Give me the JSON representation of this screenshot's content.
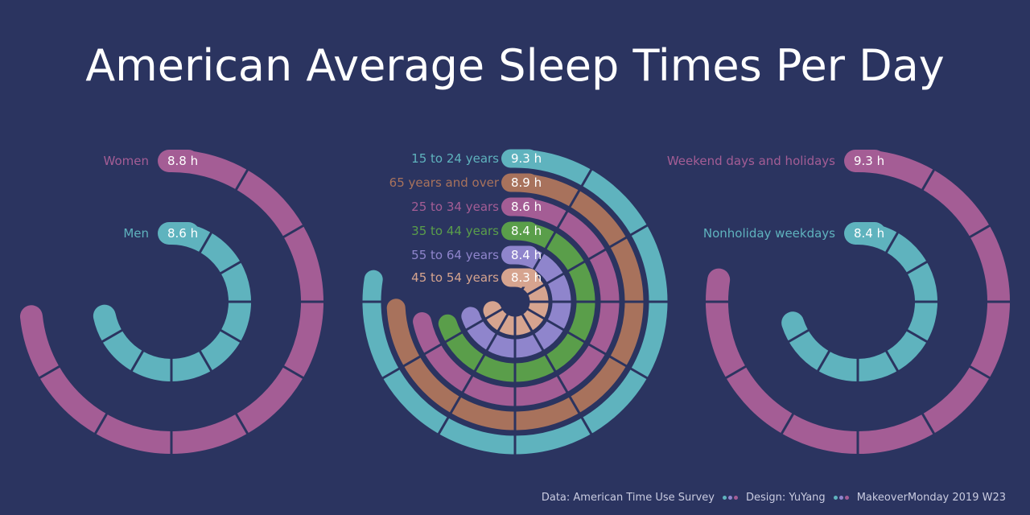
{
  "title": "American Average Sleep Times Per Day",
  "unit": "h",
  "colors": {
    "background": "#2b3460",
    "teal": "#5fb3be",
    "pink": "#a45d95",
    "brown": "#a8725c",
    "green": "#5a9e4a",
    "lavender": "#8f85cc",
    "peach": "#d6a48f"
  },
  "chart_data": [
    {
      "type": "radial-bar",
      "title": "",
      "series": [
        {
          "name": "Women",
          "value": 8.8,
          "value_label": "8.8 h",
          "color": "#a45d95"
        },
        {
          "name": "Men",
          "value": 8.6,
          "value_label": "8.6 h",
          "color": "#5fb3be"
        }
      ]
    },
    {
      "type": "radial-bar",
      "title": "",
      "series": [
        {
          "name": "15 to 24 years",
          "value": 9.3,
          "value_label": "9.3 h",
          "color": "#5fb3be"
        },
        {
          "name": "65 years and over",
          "value": 8.9,
          "value_label": "8.9 h",
          "color": "#a8725c"
        },
        {
          "name": "25 to 34 years",
          "value": 8.6,
          "value_label": "8.6 h",
          "color": "#a45d95"
        },
        {
          "name": "35 to 44 years",
          "value": 8.4,
          "value_label": "8.4 h",
          "color": "#5a9e4a"
        },
        {
          "name": "55 to 64 years",
          "value": 8.4,
          "value_label": "8.4 h",
          "color": "#8f85cc"
        },
        {
          "name": "45 to 54 years",
          "value": 8.3,
          "value_label": "8.3 h",
          "color": "#d6a48f"
        }
      ]
    },
    {
      "type": "radial-bar",
      "title": "",
      "series": [
        {
          "name": "Weekend days and holidays",
          "value": 9.3,
          "value_label": "9.3 h",
          "color": "#a45d95"
        },
        {
          "name": "Nonholiday weekdays",
          "value": 8.4,
          "value_label": "8.4 h",
          "color": "#5fb3be"
        }
      ]
    }
  ],
  "footer": {
    "source": "Data: American Time Use Survey",
    "design": "Design: YuYang",
    "project": "MakeoverMonday 2019 W23"
  }
}
